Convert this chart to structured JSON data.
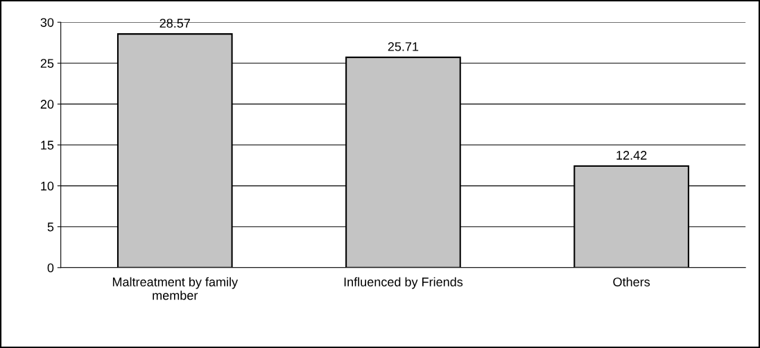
{
  "chart_data": {
    "type": "bar",
    "categories": [
      "Maltreatment by family member",
      "Influenced by Friends",
      "Others"
    ],
    "values": [
      28.57,
      25.71,
      12.42
    ],
    "color": "#c4c4c4",
    "ylim": [
      0,
      30
    ],
    "yticks": [
      0,
      5,
      10,
      15,
      20,
      25,
      30
    ],
    "grid": "y",
    "data_labels": true
  }
}
